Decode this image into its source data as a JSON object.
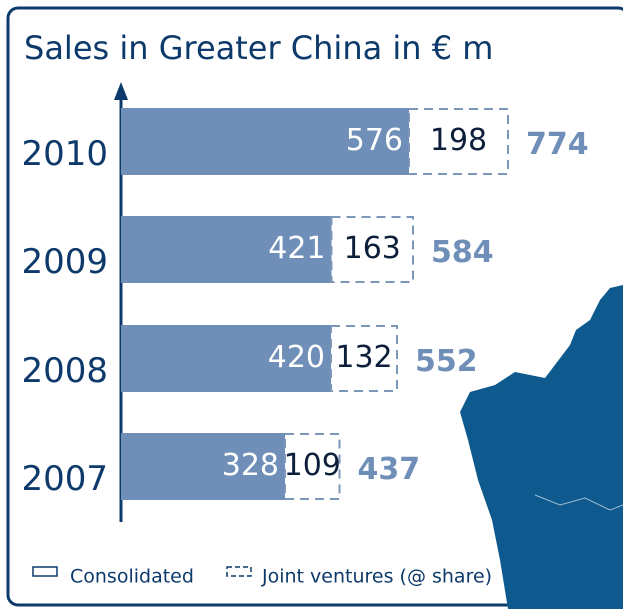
{
  "chart_data": {
    "type": "bar",
    "orientation": "horizontal",
    "stacked": true,
    "title": "Sales in Greater China in € m",
    "categories": [
      "2010",
      "2009",
      "2008",
      "2007"
    ],
    "series": [
      {
        "name": "Consolidated",
        "color": "#6f8fb8",
        "values": [
          576,
          421,
          420,
          328
        ]
      },
      {
        "name": "Joint ventures (@ share)",
        "color": "#7d97bb",
        "values": [
          198,
          163,
          132,
          109
        ]
      }
    ],
    "totals": [
      774,
      584,
      552,
      437
    ],
    "xlim": [
      0,
      1000
    ]
  }
}
